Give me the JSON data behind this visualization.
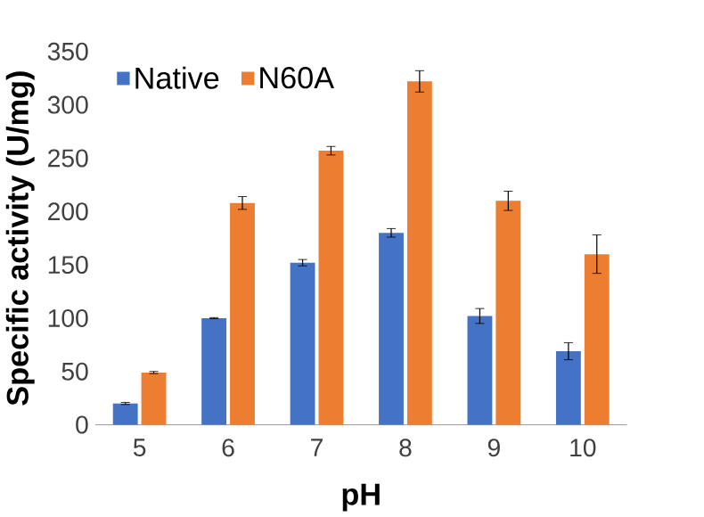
{
  "chart_data": {
    "type": "bar",
    "xlabel": "pH",
    "ylabel": "Specific activity (U/mg)",
    "categories": [
      "5",
      "6",
      "7",
      "8",
      "9",
      "10"
    ],
    "series": [
      {
        "name": "Native",
        "color": "#4472c4",
        "values": [
          20,
          100,
          152,
          180,
          102,
          69
        ],
        "errors": [
          1,
          0.5,
          3,
          4,
          7,
          8
        ]
      },
      {
        "name": "N60A",
        "color": "#ed7d31",
        "values": [
          49,
          208,
          257,
          322,
          210,
          160
        ],
        "errors": [
          1,
          6,
          4,
          10,
          9,
          18
        ]
      }
    ],
    "ylim": [
      0,
      350
    ],
    "yticks": [
      0,
      50,
      100,
      150,
      200,
      250,
      300,
      350
    ],
    "grid": false,
    "legend": "top left"
  }
}
